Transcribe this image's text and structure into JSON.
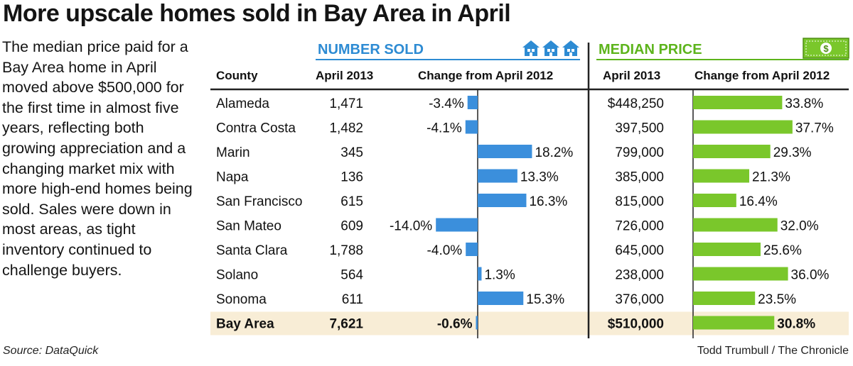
{
  "headline": "More upscale homes sold in Bay Area in April",
  "intro": "The median price paid for a Bay Area home in April moved above $500,000 for the first time in almost five years, reflecting both growing appreciation and a changing market mix with more high-end homes being sold. Sales were down in most areas, as tight inventory continued to challenge buyers.",
  "source": "Source: DataQuick",
  "credit": "Todd Trumbull / The Chronicle",
  "colors": {
    "blue": "#3b8fdc",
    "green": "#7ac72b",
    "section_blue": "#2d8bd3",
    "section_green": "#5db41c",
    "highlight": "#f8edd6",
    "rule": "#222222"
  },
  "icons": {
    "number_sold": "houses-icon",
    "median_price": "dollar-bill-icon"
  },
  "chart_data": {
    "type": "table",
    "sections": {
      "number_sold": "NUMBER SOLD",
      "median_price": "MEDIAN PRICE"
    },
    "columns": {
      "county": "County",
      "sold_april_2013": "April 2013",
      "sold_change": "Change from April 2012",
      "price_april_2013": "April 2013",
      "price_change": "Change from April 2012"
    },
    "rows": [
      {
        "county": "Alameda",
        "sold": "1,471",
        "sold_change": -3.4,
        "sold_change_label": "-3.4%",
        "price": "$448,250",
        "price_change": 33.8,
        "price_change_label": "33.8%"
      },
      {
        "county": "Contra Costa",
        "sold": "1,482",
        "sold_change": -4.1,
        "sold_change_label": "-4.1%",
        "price": "397,500",
        "price_change": 37.7,
        "price_change_label": "37.7%"
      },
      {
        "county": "Marin",
        "sold": "345",
        "sold_change": 18.2,
        "sold_change_label": "18.2%",
        "price": "799,000",
        "price_change": 29.3,
        "price_change_label": "29.3%"
      },
      {
        "county": "Napa",
        "sold": "136",
        "sold_change": 13.3,
        "sold_change_label": "13.3%",
        "price": "385,000",
        "price_change": 21.3,
        "price_change_label": "21.3%"
      },
      {
        "county": "San Francisco",
        "sold": "615",
        "sold_change": 16.3,
        "sold_change_label": "16.3%",
        "price": "815,000",
        "price_change": 16.4,
        "price_change_label": "16.4%"
      },
      {
        "county": "San Mateo",
        "sold": "609",
        "sold_change": -14.0,
        "sold_change_label": "-14.0%",
        "price": "726,000",
        "price_change": 32.0,
        "price_change_label": "32.0%"
      },
      {
        "county": "Santa Clara",
        "sold": "1,788",
        "sold_change": -4.0,
        "sold_change_label": "-4.0%",
        "price": "645,000",
        "price_change": 25.6,
        "price_change_label": "25.6%"
      },
      {
        "county": "Solano",
        "sold": "564",
        "sold_change": 1.3,
        "sold_change_label": "1.3%",
        "price": "238,000",
        "price_change": 36.0,
        "price_change_label": "36.0%"
      },
      {
        "county": "Sonoma",
        "sold": "611",
        "sold_change": 15.3,
        "sold_change_label": "15.3%",
        "price": "376,000",
        "price_change": 23.5,
        "price_change_label": "23.5%"
      }
    ],
    "total": {
      "county": "Bay Area",
      "sold": "7,621",
      "sold_change": -0.6,
      "sold_change_label": "-0.6%",
      "price": "$510,000",
      "price_change": 30.8,
      "price_change_label": "30.8%"
    }
  }
}
